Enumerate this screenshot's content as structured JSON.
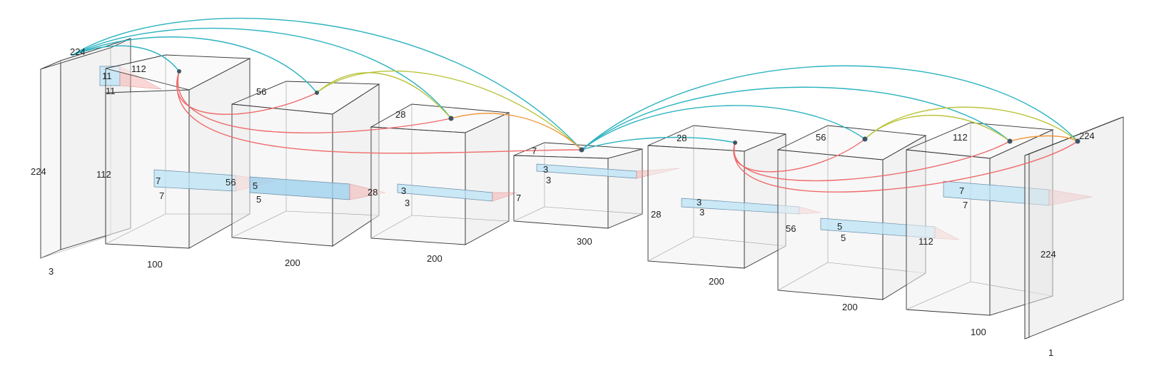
{
  "colors": {
    "cyan": "#2bb3c0",
    "olive": "#b9c43a",
    "red": "#ef6b6b",
    "orange": "#f19a3e",
    "node": "#3e5566"
  },
  "layers": [
    {
      "top": "224",
      "side": "224",
      "bottom": "3",
      "kernel_a": "11",
      "kernel_b": "11",
      "next": "112"
    },
    {
      "side": "112",
      "bottom": "100",
      "kernel_a": "7",
      "kernel_b": "7",
      "next": "56"
    },
    {
      "top": "56",
      "bottom": "200",
      "kernel_a": "5",
      "kernel_b": "5",
      "next": "28"
    },
    {
      "top": "28",
      "bottom": "200",
      "kernel_a": "3",
      "kernel_b": "3",
      "next": "7"
    },
    {
      "top": "7",
      "bottom": "300",
      "kernel_a": "3",
      "kernel_b": "3",
      "next": "28"
    },
    {
      "top": "28",
      "bottom": "200",
      "kernel_a": "3",
      "kernel_b": "3",
      "next": "56"
    },
    {
      "top": "56",
      "bottom": "200",
      "kernel_a": "5",
      "kernel_b": "5",
      "next": "112"
    },
    {
      "top": "112",
      "bottom": "100",
      "kernel_a": "7",
      "kernel_b": "7"
    },
    {
      "top": "224",
      "side": "224",
      "bottom": "1"
    }
  ]
}
